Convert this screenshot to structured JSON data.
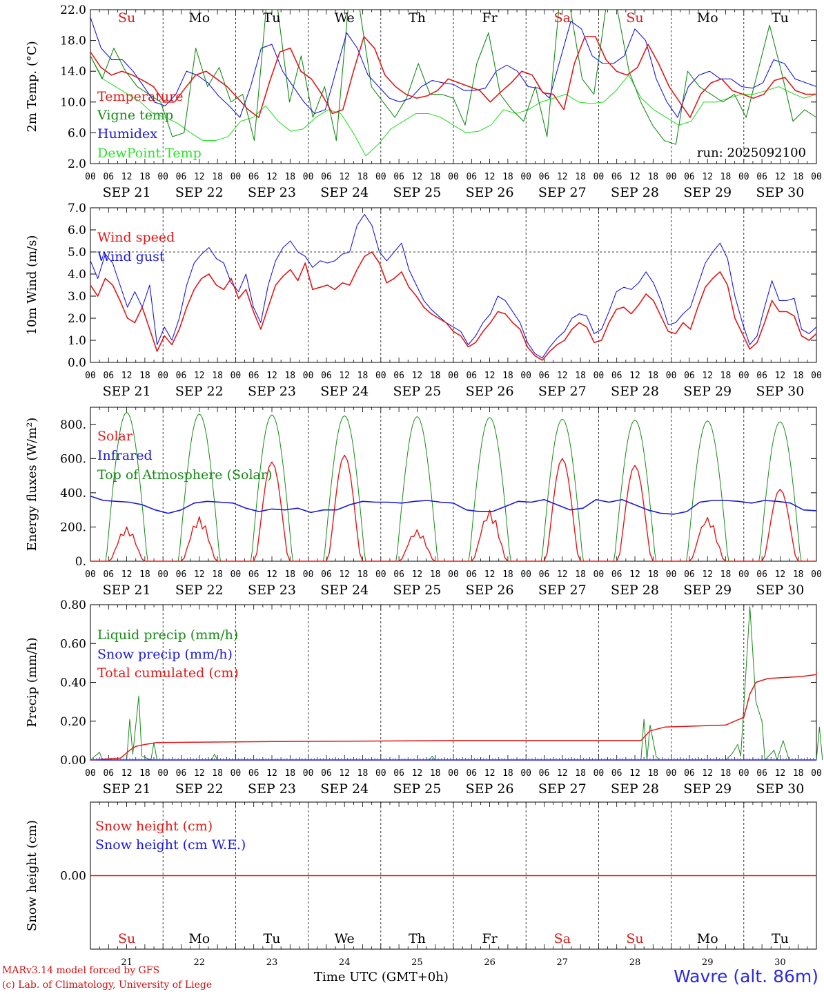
{
  "colors": {
    "red": "#e01818",
    "green": "#178a17",
    "blue": "#1818e0",
    "lightgreen": "#2ee02e",
    "weekend": "#e01818",
    "weekday": "#000000"
  },
  "days": [
    {
      "abbr": "Su",
      "date": "SEP 21",
      "num": "21",
      "weekend": true
    },
    {
      "abbr": "Mo",
      "date": "SEP 22",
      "num": "22",
      "weekend": false
    },
    {
      "abbr": "Tu",
      "date": "SEP 23",
      "num": "23",
      "weekend": false
    },
    {
      "abbr": "We",
      "date": "SEP 24",
      "num": "24",
      "weekend": false
    },
    {
      "abbr": "Th",
      "date": "SEP 25",
      "num": "25",
      "weekend": false
    },
    {
      "abbr": "Fr",
      "date": "SEP 26",
      "num": "26",
      "weekend": false
    },
    {
      "abbr": "Sa",
      "date": "SEP 27",
      "num": "27",
      "weekend": true
    },
    {
      "abbr": "Su",
      "date": "SEP 28",
      "num": "28",
      "weekend": true
    },
    {
      "abbr": "Mo",
      "date": "SEP 29",
      "num": "29",
      "weekend": false
    },
    {
      "abbr": "Tu",
      "date": "SEP 30",
      "num": "30",
      "weekend": false
    }
  ],
  "hour_labels": [
    "00",
    "06",
    "12",
    "18"
  ],
  "run_label": "run: 2025092100",
  "footer": {
    "model": "MARv3.14 model forced by GFS",
    "lab": "(c) Lab. of Climatology, University of Liege",
    "xlabel": "Time UTC (GMT+0h)",
    "station": "Wavre (alt. 86m)"
  },
  "chart_data": [
    {
      "type": "line",
      "id": "temp",
      "ylabel": "2m Temp. (°C)",
      "ylim": [
        2,
        22
      ],
      "yticks": [
        2,
        6,
        10,
        14,
        18,
        22
      ],
      "ytick_labels": [
        "2.0",
        "6.0",
        "10.0",
        "14.0",
        "18.0",
        "22.0"
      ],
      "hours_step": 6,
      "series": [
        {
          "name": "Temperature",
          "color": "red",
          "values": [
            16.5,
            14.5,
            13.5,
            14,
            13.5,
            12.8,
            12,
            10,
            10,
            11.8,
            13.5,
            14,
            13,
            12,
            10.5,
            9,
            8,
            12.5,
            16.5,
            17,
            14,
            13,
            11,
            8.5,
            9,
            14,
            18.5,
            17,
            13.5,
            12,
            11,
            10.5,
            10.8,
            11.5,
            13,
            12.5,
            12,
            11.5,
            10,
            11.3,
            12.5,
            14,
            13.5,
            11.2,
            11,
            9,
            15,
            18.5,
            18.5,
            15.5,
            14,
            13.5,
            14.5,
            17.5,
            15,
            12,
            10,
            8,
            11,
            12.5,
            13,
            11.5,
            11,
            10.5,
            11,
            12.8,
            13.2,
            11.5,
            11,
            11
          ]
        },
        {
          "name": "Vigne temp",
          "color": "green",
          "values": [
            16,
            13,
            17,
            14,
            12,
            11,
            10,
            5.5,
            6,
            17,
            12,
            14.5,
            10,
            11,
            5,
            22,
            22,
            10,
            16,
            8,
            12,
            5,
            22,
            22,
            12,
            10,
            8,
            10.5,
            15,
            11,
            11,
            10.5,
            7,
            15,
            19,
            11,
            9,
            7.5,
            12,
            5.5,
            22,
            22,
            13,
            11,
            22,
            22,
            14,
            10,
            7,
            5,
            4.5,
            14,
            12,
            11,
            10,
            11,
            8,
            14,
            20,
            14,
            7.5,
            9,
            8
          ]
        },
        {
          "name": "Humidex",
          "color": "blue",
          "values": [
            21,
            17,
            15.5,
            15.5,
            14,
            12,
            10,
            9.5,
            11,
            14,
            13.5,
            12.5,
            10.8,
            9.5,
            8,
            12,
            17,
            17.5,
            14,
            12,
            10,
            8.5,
            9,
            14,
            19,
            17,
            13.5,
            12,
            10.5,
            10,
            10.5,
            12,
            12.8,
            12.5,
            12.3,
            11.5,
            11.5,
            11.8,
            14,
            14.8,
            14,
            12,
            11.8,
            10.5,
            15.5,
            20.5,
            19.5,
            16,
            15,
            15,
            16,
            19.5,
            18,
            13,
            10,
            8,
            12,
            13.5,
            14,
            13,
            13,
            12,
            11.8,
            12.5,
            15.5,
            15,
            13,
            12.5,
            12
          ]
        },
        {
          "name": "DewPoint Temp",
          "color": "lightgreen",
          "values": [
            16,
            13,
            12,
            11,
            10,
            8.5,
            8,
            7.2,
            6,
            5,
            5,
            5.5,
            7.5,
            8,
            9.5,
            7.5,
            6.2,
            6.5,
            8,
            9,
            8.5,
            6,
            3,
            4.5,
            6.5,
            7.5,
            8.5,
            8.5,
            8,
            7,
            6,
            6.2,
            7,
            9,
            8.5,
            9,
            10,
            10.5,
            11,
            10,
            9.8,
            10,
            11.5,
            13.5,
            10.5,
            9,
            8,
            7,
            7.5,
            10,
            10,
            10.5,
            11,
            11,
            11.5,
            12,
            11.2,
            10.5,
            11
          ]
        }
      ],
      "legend": [
        "Temperature",
        "Vigne temp",
        "Humidex",
        "DewPoint Temp"
      ]
    },
    {
      "type": "line",
      "id": "wind",
      "ylabel": "10m Wind (m/s)",
      "ylim": [
        0,
        7
      ],
      "yticks": [
        0,
        1,
        2,
        3,
        4,
        5,
        6,
        7
      ],
      "ytick_labels": [
        "0.0",
        "1.0",
        "2.0",
        "3.0",
        "4.0",
        "5.0",
        "6.0",
        "7.0"
      ],
      "hline": 5,
      "series": [
        {
          "name": "Wind speed",
          "color": "red",
          "values": [
            3.5,
            3,
            3.8,
            3.5,
            2.8,
            2,
            1.8,
            2.5,
            1.5,
            0.5,
            1.2,
            0.8,
            1.5,
            2.5,
            3.3,
            3.8,
            4,
            3.5,
            3.3,
            3.8,
            2.9,
            3.3,
            2.3,
            1.5,
            2.5,
            3.5,
            3.9,
            4.2,
            3.7,
            4.5,
            3.3,
            3.4,
            3.5,
            3.3,
            3.6,
            3.5,
            4.2,
            4.8,
            5,
            4.5,
            3.6,
            3.8,
            4.1,
            3.4,
            3,
            2.5,
            2.2,
            2,
            1.8,
            1.4,
            1.2,
            0.7,
            0.9,
            1.4,
            1.8,
            2.3,
            2.2,
            1.8,
            1.5,
            0.7,
            0.3,
            0.1,
            0.5,
            0.8,
            1,
            1.5,
            1.8,
            1.6,
            0.9,
            1,
            1.8,
            2.4,
            2.5,
            2.2,
            2.6,
            3.1,
            2.8,
            2.1,
            1.4,
            1.3,
            1.8,
            1.5,
            2.5,
            3.4,
            3.8,
            4.1,
            3.5,
            2,
            1.3,
            0.6,
            0.9,
            1.8,
            2.8,
            2.3,
            2.3,
            2.1,
            1.2,
            1,
            1.3
          ]
        },
        {
          "name": "Wind gust",
          "color": "blue",
          "values": [
            4.6,
            3.8,
            4.9,
            4.5,
            3.5,
            2.5,
            3.2,
            2.5,
            3.5,
            0.8,
            1.6,
            1,
            2,
            3.5,
            4.5,
            4.9,
            5.2,
            4.7,
            4.5,
            3.6,
            3.2,
            4,
            2.5,
            1.8,
            3.5,
            4.6,
            5.2,
            5.5,
            5,
            4.8,
            4.3,
            4.6,
            4.5,
            4.6,
            4.9,
            5,
            6.2,
            6.7,
            6.2,
            5,
            4.6,
            5,
            5.4,
            4.2,
            3.5,
            2.8,
            2.4,
            2.1,
            1.8,
            1.6,
            1.4,
            0.8,
            1.2,
            1.8,
            2.2,
            3,
            2.8,
            2.3,
            1.8,
            0.9,
            0.4,
            0.2,
            0.7,
            1.1,
            1.4,
            2,
            2.2,
            2.1,
            1.3,
            1.5,
            2.3,
            3.2,
            3.4,
            3.3,
            3.6,
            4.1,
            3.6,
            2.8,
            1.7,
            1.8,
            2.2,
            2.5,
            3.5,
            4.5,
            5,
            5.4,
            4.7,
            3,
            1.8,
            0.8,
            1.2,
            2.5,
            3.7,
            2.8,
            2.8,
            2.9,
            1.5,
            1.3,
            1.6
          ]
        }
      ],
      "legend": [
        "Wind speed",
        "Wind gust"
      ]
    },
    {
      "type": "line",
      "id": "flux",
      "ylabel": "Energy fluxes (W/m²)",
      "ylim": [
        0,
        900
      ],
      "yticks": [
        0,
        200,
        400,
        600,
        800
      ],
      "ytick_labels": [
        "0.",
        "200.",
        "400.",
        "600.",
        "800."
      ],
      "toa_peaks": [
        870,
        860,
        855,
        850,
        845,
        840,
        830,
        825,
        820,
        815
      ],
      "solar_peaks": [
        200,
        260,
        580,
        620,
        185,
        300,
        600,
        560,
        260,
        420
      ],
      "infrared": [
        380,
        355,
        350,
        345,
        330,
        300,
        280,
        300,
        340,
        350,
        345,
        340,
        310,
        290,
        305,
        300,
        310,
        285,
        300,
        300,
        330,
        350,
        345,
        345,
        340,
        350,
        355,
        345,
        340,
        300,
        290,
        290,
        320,
        350,
        345,
        360,
        330,
        300,
        310,
        360,
        345,
        360,
        330,
        300,
        280,
        275,
        290,
        345,
        355,
        355,
        350,
        340,
        355,
        350,
        340,
        300,
        295
      ],
      "series_names": [
        "Solar",
        "Infrared",
        "Top of Atmosphere (Solar)"
      ],
      "legend": [
        "Solar",
        "Infrared",
        "Top of Atmosphere (Solar)"
      ]
    },
    {
      "type": "line",
      "id": "precip",
      "ylabel": "Precip (mm/h)",
      "ylim": [
        0,
        0.8
      ],
      "yticks": [
        0,
        0.2,
        0.4,
        0.6,
        0.8
      ],
      "ytick_labels": [
        "0.00",
        "0.20",
        "0.40",
        "0.60",
        "0.80"
      ],
      "liquid": [
        [
          0,
          0
        ],
        [
          3,
          0.04
        ],
        [
          4,
          0
        ],
        [
          12,
          0
        ],
        [
          13,
          0.21
        ],
        [
          14,
          0.03
        ],
        [
          16,
          0.33
        ],
        [
          17,
          0.02
        ],
        [
          20,
          0
        ],
        [
          21,
          0.09
        ],
        [
          22,
          0
        ],
        [
          40,
          0
        ],
        [
          41,
          0.03
        ],
        [
          42,
          0
        ],
        [
          112,
          0
        ],
        [
          113,
          0.02
        ],
        [
          114,
          0
        ],
        [
          182,
          0
        ],
        [
          183,
          0.21
        ],
        [
          184,
          0
        ],
        [
          185,
          0.18
        ],
        [
          187,
          0.02
        ],
        [
          188,
          0
        ],
        [
          210,
          0
        ],
        [
          212,
          0.03
        ],
        [
          214,
          0.08
        ],
        [
          215,
          0.02
        ],
        [
          218,
          0.79
        ],
        [
          220,
          0.3
        ],
        [
          222,
          0.2
        ],
        [
          223,
          0
        ],
        [
          226,
          0.05
        ],
        [
          227,
          0
        ],
        [
          229,
          0.1
        ],
        [
          231,
          0
        ],
        [
          240,
          0
        ],
        [
          241,
          0.17
        ],
        [
          242,
          0
        ]
      ],
      "cumulated": [
        [
          0,
          0
        ],
        [
          10,
          0.01
        ],
        [
          13,
          0.05
        ],
        [
          15,
          0.07
        ],
        [
          18,
          0.08
        ],
        [
          22,
          0.09
        ],
        [
          60,
          0.095
        ],
        [
          120,
          0.1
        ],
        [
          182,
          0.1
        ],
        [
          185,
          0.15
        ],
        [
          190,
          0.17
        ],
        [
          210,
          0.18
        ],
        [
          216,
          0.22
        ],
        [
          218,
          0.34
        ],
        [
          220,
          0.4
        ],
        [
          224,
          0.42
        ],
        [
          235,
          0.43
        ],
        [
          240,
          0.44
        ],
        [
          243,
          0.45
        ]
      ],
      "series_names": [
        "Liquid precip (mm/h)",
        "Snow precip (mm/h)",
        "Total cumulated (cm)"
      ],
      "legend": [
        "Liquid precip (mm/h)",
        "Snow precip (mm/h)",
        "Total cumulated (cm)"
      ]
    },
    {
      "type": "line",
      "id": "snow",
      "ylabel": "Snow height (cm)",
      "ylim": [
        -1,
        1
      ],
      "yticks": [
        0
      ],
      "ytick_labels": [
        "0.00"
      ],
      "values": [
        0,
        0
      ],
      "series_names": [
        "Snow height (cm)",
        "Snow height (cm W.E.)"
      ],
      "legend": [
        "Snow height (cm)",
        "Snow height (cm W.E.)"
      ]
    }
  ]
}
